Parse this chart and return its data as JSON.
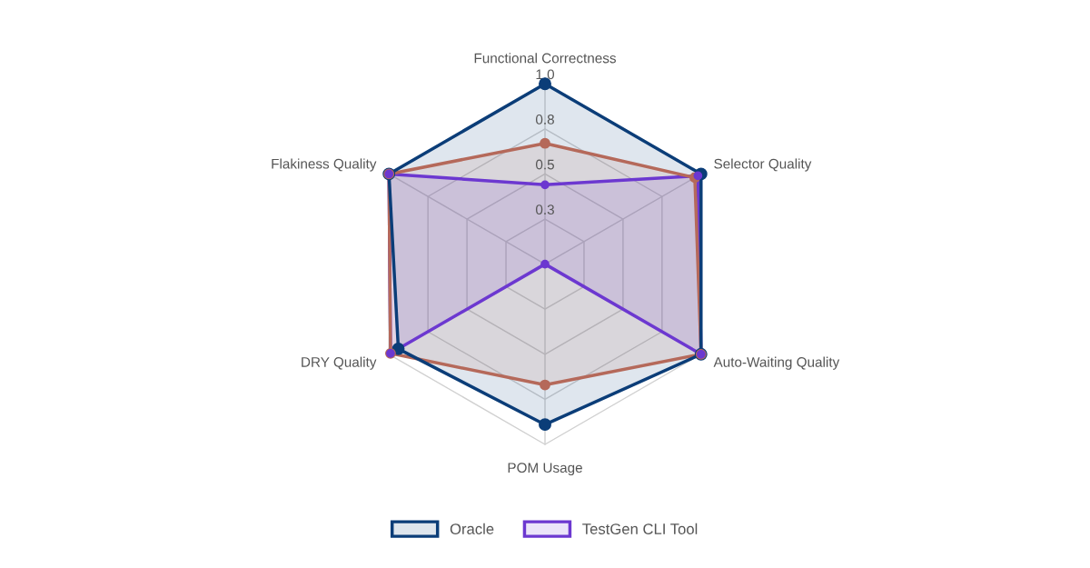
{
  "chart_data": {
    "type": "radar",
    "categories": [
      "Functional Correctness",
      "Selector Quality",
      "Auto-Waiting Quality",
      "POM Usage",
      "DRY Quality",
      "Flakiness Quality"
    ],
    "series": [
      {
        "name": "Oracle",
        "color": "#0b3d78",
        "values": [
          1.0,
          1.0,
          1.0,
          0.89,
          0.94,
          1.0
        ]
      },
      {
        "color": "#b5695a",
        "values": [
          0.67,
          0.96,
          1.0,
          0.67,
          0.99,
          1.0
        ]
      },
      {
        "name": "TestGen CLI Tool",
        "color": "#6c38d0",
        "values": [
          0.44,
          0.98,
          1.0,
          0.0,
          0.99,
          1.0
        ]
      }
    ],
    "ylim": [
      0,
      1
    ],
    "yticks": [
      {
        "value": 0.25,
        "label": "0.3"
      },
      {
        "value": 0.5,
        "label": "0.5"
      },
      {
        "value": 0.75,
        "label": "0.8"
      },
      {
        "value": 1.0,
        "label": "1.0"
      }
    ],
    "grid": true,
    "legend": "bottom",
    "marker": "circle"
  }
}
